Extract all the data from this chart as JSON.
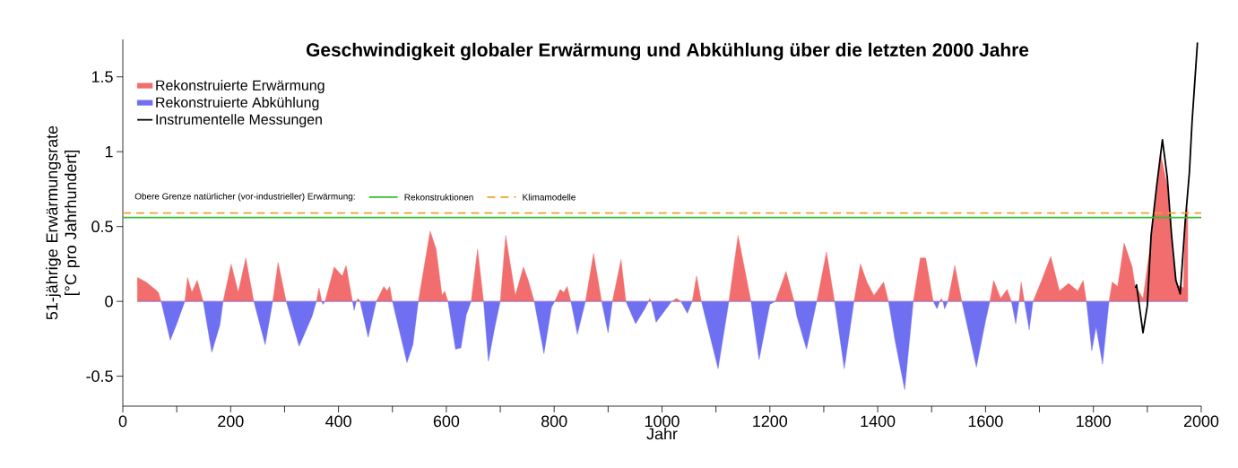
{
  "chart_data": {
    "type": "area",
    "title": "Geschwindigkeit globaler Erwärmung und Abkühlung über die letzten 2000 Jahre",
    "xlabel": "Jahr",
    "ylabel": "51-jährige Erwärmungsrate [°C pro Jahrhundert]",
    "annotations": [
      "Obere Grenze natürlicher (vor-industrieller) Erwärmung:"
    ],
    "x": [
      27,
      43,
      60,
      66,
      71,
      88,
      100,
      115,
      120,
      128,
      138,
      149,
      165,
      180,
      186,
      201,
      214,
      228,
      243,
      264,
      278,
      288,
      303,
      327,
      351,
      359,
      364,
      369,
      371,
      375,
      392,
      407,
      414,
      426,
      429,
      433,
      436,
      440,
      455,
      470,
      484,
      490,
      495,
      500,
      527,
      538,
      548,
      570,
      581,
      592,
      597,
      603,
      617,
      627,
      637,
      646,
      658,
      669,
      678,
      690,
      700,
      710,
      728,
      743,
      752,
      763,
      781,
      795,
      801,
      811,
      818,
      824,
      831,
      843,
      858,
      873,
      888,
      900,
      908,
      924,
      933,
      951,
      968,
      975,
      977,
      980,
      989,
      1018,
      1027,
      1035,
      1047,
      1056,
      1064,
      1073,
      1104,
      1124,
      1141,
      1165,
      1180,
      1200,
      1210,
      1230,
      1245,
      1250,
      1268,
      1287,
      1305,
      1320,
      1338,
      1356,
      1368,
      1380,
      1393,
      1411,
      1420,
      1432,
      1450,
      1466,
      1479,
      1489,
      1503,
      1510,
      1515,
      1518,
      1521,
      1524,
      1530,
      1543,
      1556,
      1583,
      1600,
      1608,
      1615,
      1628,
      1640,
      1648,
      1656,
      1662,
      1666,
      1672,
      1681,
      1688,
      1704,
      1721,
      1737,
      1754,
      1771,
      1781,
      1787,
      1797,
      1805,
      1817,
      1829,
      1835,
      1845,
      1857,
      1872,
      1877,
      1892,
      1908,
      1925,
      1937,
      1947,
      1955,
      1967,
      1970,
      1975
    ],
    "series": [
      {
        "name": "Rekonstruierte Erwärmung",
        "color": "#f26d6d",
        "values": [
          0.16,
          0.13,
          0.08,
          0.06,
          0,
          0,
          0,
          0,
          0.16,
          0.06,
          0.14,
          0,
          0,
          0,
          0,
          0.25,
          0.06,
          0.29,
          0,
          0,
          0,
          0.26,
          0,
          0,
          0,
          0,
          0.09,
          0,
          0,
          0,
          0.23,
          0.17,
          0.24,
          0,
          0,
          0,
          0.02,
          0,
          0,
          0,
          0.1,
          0.07,
          0.1,
          0,
          0,
          0,
          0,
          0.47,
          0.35,
          0.04,
          0.07,
          0,
          0,
          0,
          0,
          0,
          0.35,
          0,
          0,
          0,
          0,
          0.44,
          0.04,
          0.23,
          0.14,
          0,
          0,
          0,
          0,
          0.08,
          0.06,
          0.1,
          0,
          0,
          0,
          0.32,
          0,
          0,
          0,
          0.28,
          0,
          0,
          0,
          0,
          0.02,
          0,
          0,
          0,
          0.02,
          0,
          0,
          0,
          0.17,
          0,
          0,
          0,
          0.44,
          0,
          0,
          0,
          0,
          0.2,
          0,
          0,
          0,
          0,
          0.33,
          0,
          0,
          0,
          0.25,
          0.13,
          0.04,
          0.13,
          0,
          0,
          0,
          0,
          0.29,
          0.29,
          0,
          0,
          0,
          0.02,
          0,
          0,
          0,
          0.24,
          0,
          0,
          0,
          0,
          0.14,
          0.02,
          0.08,
          0,
          0,
          0,
          0.13,
          0,
          0,
          0,
          0.14,
          0.3,
          0.07,
          0.12,
          0.07,
          0.14,
          0,
          0,
          0,
          0,
          0,
          0.13,
          0.1,
          0.39,
          0.23,
          0.11,
          0.02,
          0.44,
          0.98,
          0.77,
          0.3,
          0.11,
          0.09,
          0.55,
          0.62
        ]
      },
      {
        "name": "Rekonstruierte Abkühlung",
        "color": "#6f6ff2",
        "values": [
          0,
          0,
          0,
          0,
          0,
          -0.26,
          -0.15,
          0,
          0,
          0,
          0,
          0,
          -0.34,
          -0.16,
          0,
          0,
          0,
          0,
          0,
          -0.29,
          0,
          0,
          0,
          -0.3,
          -0.1,
          0,
          0,
          0,
          -0.02,
          0,
          0,
          0,
          0,
          0,
          -0.06,
          0,
          0,
          0,
          -0.24,
          0,
          0,
          0,
          0,
          0,
          -0.41,
          -0.29,
          0,
          0,
          0,
          0,
          0,
          0,
          -0.32,
          -0.31,
          -0.09,
          0,
          0,
          0,
          -0.4,
          -0.17,
          0,
          0,
          0,
          0,
          0,
          0,
          -0.35,
          -0.04,
          0,
          0,
          0,
          0,
          0,
          -0.22,
          0,
          0,
          0,
          -0.21,
          0,
          0,
          0,
          -0.15,
          -0.05,
          0,
          0,
          0,
          -0.14,
          0,
          0,
          0,
          -0.08,
          0,
          0,
          0,
          -0.45,
          0,
          0,
          0,
          -0.39,
          -0.02,
          0,
          0,
          0,
          -0.1,
          -0.32,
          0,
          0,
          0,
          -0.45,
          0,
          0,
          0,
          0,
          0,
          0,
          -0.26,
          -0.59,
          0,
          0,
          0,
          0,
          -0.05,
          0,
          0,
          0,
          -0.05,
          0,
          0,
          0,
          -0.44,
          -0.13,
          0,
          0,
          0,
          0,
          0,
          -0.15,
          0,
          0,
          0,
          -0.19,
          0,
          0,
          0,
          0,
          0,
          0,
          0,
          0,
          -0.33,
          -0.17,
          -0.42,
          0,
          0,
          0,
          0,
          0,
          0,
          0,
          0,
          0,
          0,
          0,
          0,
          0,
          0,
          0
        ]
      },
      {
        "name": "Instrumentelle Messungen",
        "color": "#000000",
        "type": "line",
        "x": [
          1878,
          1880,
          1892,
          1900,
          1907,
          1917,
          1928,
          1937,
          1945,
          1953,
          1961,
          1970,
          1978,
          1983,
          1993
        ],
        "values": [
          0.09,
          0.11,
          -0.21,
          -0.03,
          0.44,
          0.76,
          1.08,
          0.83,
          0.44,
          0.14,
          0.05,
          0.52,
          0.86,
          1.2,
          1.73
        ]
      }
    ],
    "xlim": [
      0,
      2000
    ],
    "ylim": [
      -0.7,
      1.75
    ],
    "xticks": [
      0,
      {
        "value": 100,
        "label": null
      },
      200,
      {
        "value": 300,
        "label": null
      },
      400,
      {
        "value": 500,
        "label": null
      },
      600,
      {
        "value": 700,
        "label": null
      },
      800,
      {
        "value": 900,
        "label": null
      },
      1000,
      {
        "value": 1100,
        "label": null
      },
      1200,
      {
        "value": 1300,
        "label": null
      },
      1400,
      {
        "value": 1500,
        "label": null
      },
      1600,
      {
        "value": 1700,
        "label": null
      },
      1800,
      {
        "value": 1900,
        "label": null
      },
      2000
    ],
    "yticks": [
      -0.5,
      0,
      0.5,
      1,
      1.5
    ],
    "ref_lines": [
      {
        "axis": "y",
        "value": 0.56,
        "label": "Rekonstruktionen",
        "color": "#33bb33",
        "line_style": "solid"
      },
      {
        "axis": "y",
        "value": 0.59,
        "label": "Klimamodelle",
        "color": "#f0a030",
        "line_style": "dashed"
      }
    ],
    "legend": "top left"
  }
}
